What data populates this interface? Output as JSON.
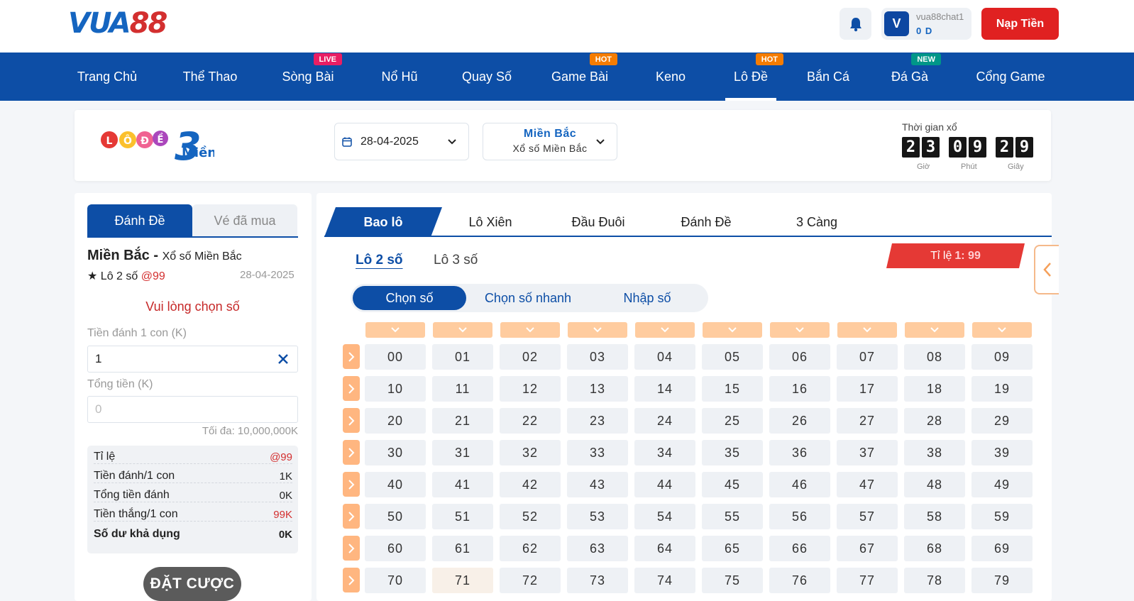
{
  "header": {
    "logo_text_a": "VUA",
    "logo_text_b": "88",
    "username": "vua88chat1",
    "balance": "0 D",
    "avatar_letter": "V",
    "deposit_label": "Nạp Tiền"
  },
  "nav": {
    "items": [
      {
        "label": "Trang Chủ",
        "badge": ""
      },
      {
        "label": "Thể Thao",
        "badge": ""
      },
      {
        "label": "Sòng Bài",
        "badge": "LIVE"
      },
      {
        "label": "Nổ Hũ",
        "badge": ""
      },
      {
        "label": "Quay Số",
        "badge": ""
      },
      {
        "label": "Game Bài",
        "badge": "HOT"
      },
      {
        "label": "Keno",
        "badge": ""
      },
      {
        "label": "Lô Đề",
        "badge": "HOT"
      },
      {
        "label": "Bắn Cá",
        "badge": ""
      },
      {
        "label": "Đá Gà",
        "badge": "NEW"
      },
      {
        "label": "Cổng Game",
        "badge": ""
      }
    ],
    "active_index": 7
  },
  "lottery": {
    "logo_text": "Miền",
    "logo_num": "3",
    "logo_letters": [
      "L",
      "Ô",
      "Đ",
      "Ề"
    ],
    "date": "28-04-2025",
    "region_main": "Miền Bắc",
    "region_sub": "Xổ số Miền Bắc",
    "timer_label": "Thời gian xổ",
    "timer_digits": [
      "2",
      "3",
      "0",
      "9",
      "2",
      "9"
    ],
    "timer_units": [
      "Giờ",
      "Phút",
      "Giây"
    ]
  },
  "left": {
    "tab_active": "Đánh Đề",
    "tab_inactive": "Vé đã mua",
    "region_title": "Miền Bắc -",
    "region_title_sub": "Xổ số Miền Bắc",
    "bet_type": "★ Lô 2 số",
    "bet_odds": "@99",
    "bet_date": "28-04-2025",
    "hint": "Vui lòng chọn số",
    "stake_label": "Tiền đánh 1 con (K)",
    "stake_value": "1",
    "total_label": "Tổng tiền (K)",
    "total_placeholder": "0",
    "max_text": "Tối đa: 10,000,000K",
    "summary": [
      {
        "label": "Tỉ lệ",
        "value": "@99"
      },
      {
        "label": "Tiền đánh/1 con",
        "value": "1K"
      },
      {
        "label": "Tổng tiền đánh",
        "value": "0K"
      },
      {
        "label": "Tiền thắng/1 con",
        "value": "99K"
      },
      {
        "label": "Số dư khả dụng",
        "value": "0K"
      }
    ],
    "bet_button": "ĐẶT CƯỢC"
  },
  "right": {
    "main_tabs": [
      "Bao lô",
      "Lô Xiên",
      "Đầu Đuôi",
      "Đánh Đề",
      "3 Càng"
    ],
    "sub_tabs": [
      "Lô 2 số",
      "Lô 3 số"
    ],
    "ratio_label": "Tỉ lệ",
    "ratio_value": "1: 99",
    "modes": [
      "Chọn số",
      "Chọn số nhanh",
      "Nhập số"
    ],
    "numbers": [
      [
        "00",
        "01",
        "02",
        "03",
        "04",
        "05",
        "06",
        "07",
        "08",
        "09"
      ],
      [
        "10",
        "11",
        "12",
        "13",
        "14",
        "15",
        "16",
        "17",
        "18",
        "19"
      ],
      [
        "20",
        "21",
        "22",
        "23",
        "24",
        "25",
        "26",
        "27",
        "28",
        "29"
      ],
      [
        "30",
        "31",
        "32",
        "33",
        "34",
        "35",
        "36",
        "37",
        "38",
        "39"
      ],
      [
        "40",
        "41",
        "42",
        "43",
        "44",
        "45",
        "46",
        "47",
        "48",
        "49"
      ],
      [
        "50",
        "51",
        "52",
        "53",
        "54",
        "55",
        "56",
        "57",
        "58",
        "59"
      ],
      [
        "60",
        "61",
        "62",
        "63",
        "64",
        "65",
        "66",
        "67",
        "68",
        "69"
      ],
      [
        "70",
        "71",
        "72",
        "73",
        "74",
        "75",
        "76",
        "77",
        "78",
        "79"
      ]
    ],
    "hovered_number": "71"
  },
  "colors": {
    "primary": "#0d4ea6",
    "danger": "#e02121",
    "column_header": "#ffcc9f",
    "row_arrow": "#ffb680"
  }
}
